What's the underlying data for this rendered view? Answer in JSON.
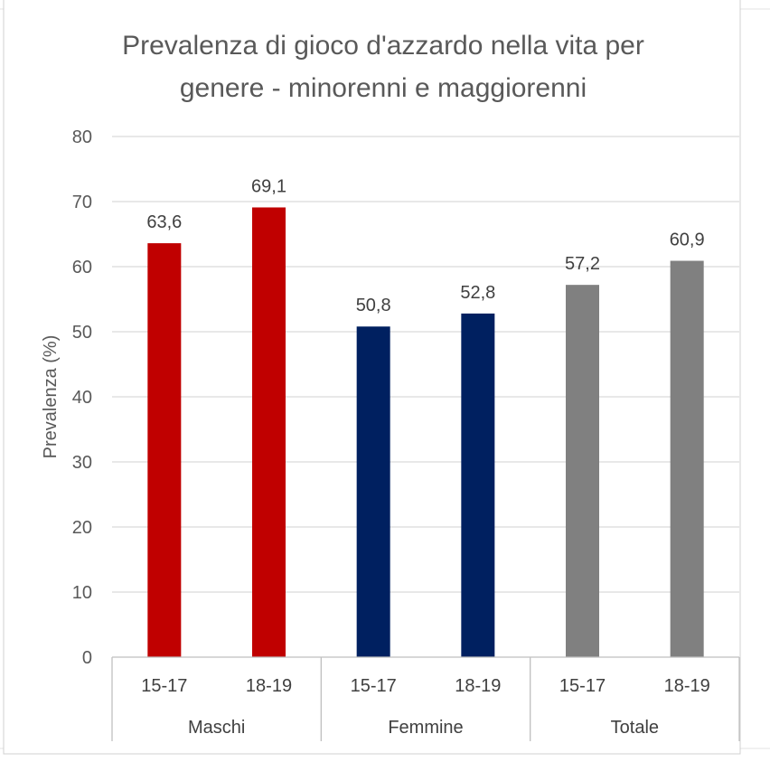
{
  "chart_data": {
    "type": "bar",
    "title_lines": [
      "Prevalenza di gioco d'azzardo nella vita per",
      "genere - minorenni e maggiorenni"
    ],
    "ylabel": "Prevalenza (%)",
    "ylim": [
      0,
      80
    ],
    "yticks": [
      0,
      10,
      20,
      30,
      40,
      50,
      60,
      70,
      80
    ],
    "grid": true,
    "groups": [
      {
        "name": "Maschi",
        "color": "#c00000",
        "bars": [
          {
            "category": "15-17",
            "value": 63.6,
            "label": "63,6"
          },
          {
            "category": "18-19",
            "value": 69.1,
            "label": "69,1"
          }
        ]
      },
      {
        "name": "Femmine",
        "color": "#002060",
        "bars": [
          {
            "category": "15-17",
            "value": 50.8,
            "label": "50,8"
          },
          {
            "category": "18-19",
            "value": 52.8,
            "label": "52,8"
          }
        ]
      },
      {
        "name": "Totale",
        "color": "#808080",
        "bars": [
          {
            "category": "15-17",
            "value": 57.2,
            "label": "57,2"
          },
          {
            "category": "18-19",
            "value": 60.9,
            "label": "60,9"
          }
        ]
      }
    ]
  }
}
